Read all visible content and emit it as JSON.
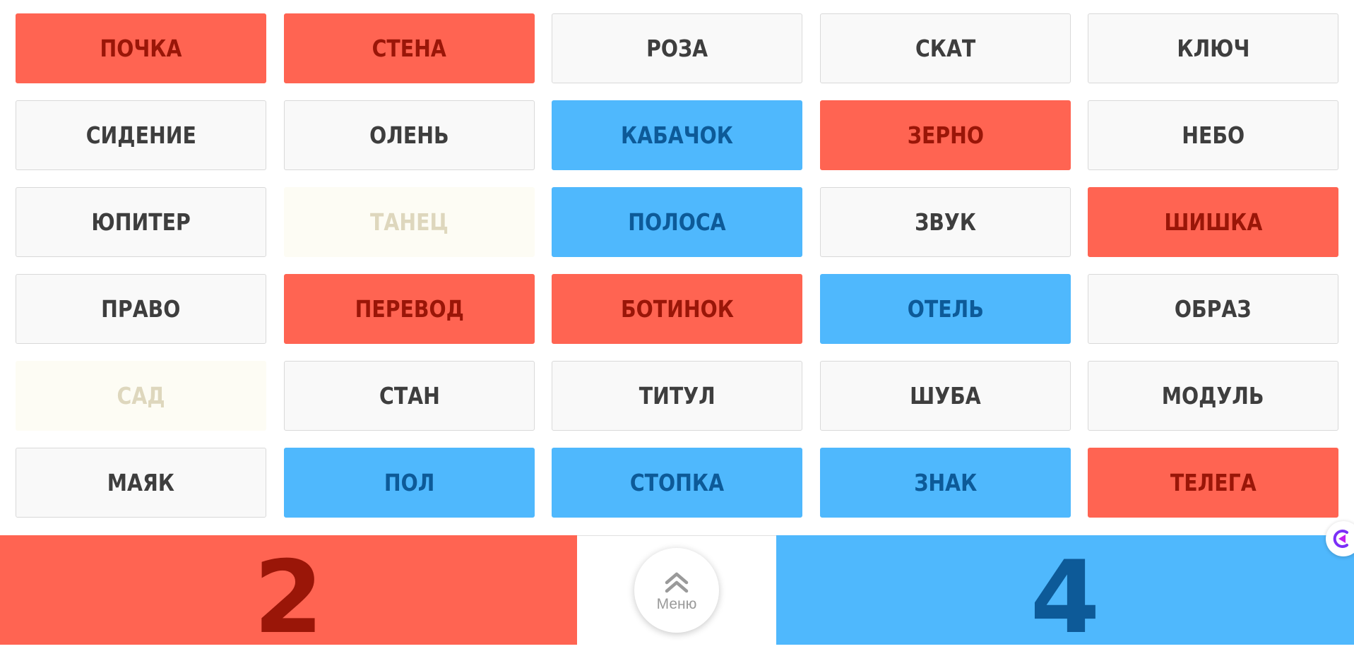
{
  "board": {
    "cards": [
      {
        "word": "ПОЧКА",
        "state": "red"
      },
      {
        "word": "СТЕНА",
        "state": "red"
      },
      {
        "word": "РОЗА",
        "state": "neutral"
      },
      {
        "word": "СКАТ",
        "state": "neutral"
      },
      {
        "word": "КЛЮЧ",
        "state": "neutral"
      },
      {
        "word": "СИДЕНИЕ",
        "state": "neutral"
      },
      {
        "word": "ОЛЕНЬ",
        "state": "neutral"
      },
      {
        "word": "КАБАЧОК",
        "state": "blue"
      },
      {
        "word": "ЗЕРНО",
        "state": "red"
      },
      {
        "word": "НЕБО",
        "state": "neutral"
      },
      {
        "word": "ЮПИТЕР",
        "state": "neutral"
      },
      {
        "word": "ТАНЕЦ",
        "state": "faded"
      },
      {
        "word": "ПОЛОСА",
        "state": "blue"
      },
      {
        "word": "ЗВУК",
        "state": "neutral"
      },
      {
        "word": "ШИШКА",
        "state": "red"
      },
      {
        "word": "ПРАВО",
        "state": "neutral"
      },
      {
        "word": "ПЕРЕВОД",
        "state": "red"
      },
      {
        "word": "БОТИНОК",
        "state": "red"
      },
      {
        "word": "ОТЕЛЬ",
        "state": "blue"
      },
      {
        "word": "ОБРАЗ",
        "state": "neutral"
      },
      {
        "word": "САД",
        "state": "faded"
      },
      {
        "word": "СТАН",
        "state": "neutral"
      },
      {
        "word": "ТИТУЛ",
        "state": "neutral"
      },
      {
        "word": "ШУБА",
        "state": "neutral"
      },
      {
        "word": "МОДУЛЬ",
        "state": "neutral"
      },
      {
        "word": "МАЯК",
        "state": "neutral"
      },
      {
        "word": "ПОЛ",
        "state": "blue"
      },
      {
        "word": "СТОПКА",
        "state": "blue"
      },
      {
        "word": "ЗНАК",
        "state": "blue"
      },
      {
        "word": "ТЕЛЕГА",
        "state": "red"
      }
    ]
  },
  "scores": {
    "red": "2",
    "blue": "4"
  },
  "menu": {
    "label": "Меню",
    "icon": "double-chevron-up-icon"
  },
  "colors": {
    "red_team": "#ff6452",
    "red_text": "#9a1608",
    "blue_team": "#4fb8fd",
    "blue_text": "#0d5a98",
    "neutral_card": "#f9f9f9",
    "neutral_text": "#3e3e3e",
    "faded_card": "#fdfcf4",
    "faded_text": "#ded7bd"
  }
}
